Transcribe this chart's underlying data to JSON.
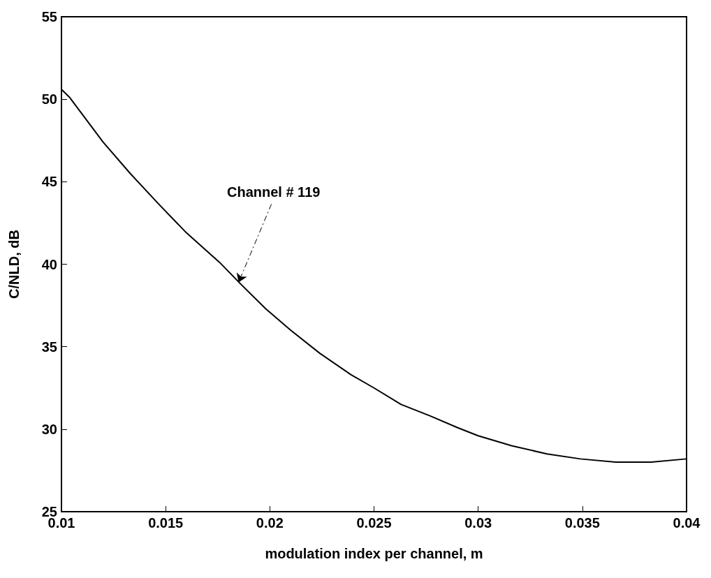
{
  "chart_data": {
    "type": "line",
    "xlabel": "modulation index per channel, m",
    "ylabel": "C/NLD, dB",
    "x": [
      0.01,
      0.0104,
      0.012,
      0.0133,
      0.0147,
      0.016,
      0.0176,
      0.0186,
      0.0198,
      0.021,
      0.0224,
      0.0239,
      0.025,
      0.0263,
      0.0277,
      0.029,
      0.03,
      0.0316,
      0.0333,
      0.0349,
      0.0366,
      0.0383,
      0.04
    ],
    "series": [
      {
        "color": "#000000",
        "values": [
          50.6,
          50.1,
          47.4,
          45.5,
          43.6,
          41.9,
          40.1,
          38.8,
          37.3,
          36.0,
          34.6,
          33.3,
          32.5,
          31.5,
          30.8,
          30.1,
          29.6,
          29.0,
          28.5,
          28.2,
          28.0,
          28.0,
          28.2
        ]
      }
    ],
    "xlim": [
      0.01,
      0.04
    ],
    "xticks": [
      0.01,
      0.015,
      0.02,
      0.025,
      0.03,
      0.035,
      0.04
    ],
    "ylim": [
      25,
      55
    ],
    "yticks": [
      25,
      30,
      35,
      40,
      45,
      50,
      55
    ],
    "annotations": [
      {
        "text": "Channel # 119",
        "x": 0.0185,
        "y": 38.9
      }
    ],
    "marker": "none",
    "line_style": "solid"
  }
}
